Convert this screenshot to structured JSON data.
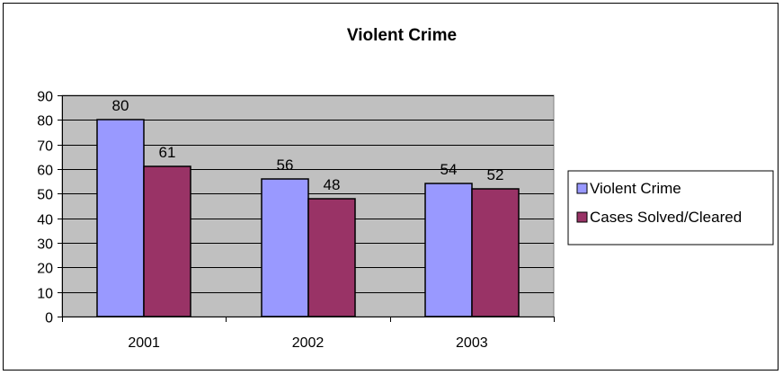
{
  "chart_data": {
    "type": "bar",
    "title": "Violent Crime",
    "categories": [
      "2001",
      "2002",
      "2003"
    ],
    "series": [
      {
        "name": "Violent Crime",
        "values": [
          80,
          56,
          54
        ],
        "color": "#9999ff"
      },
      {
        "name": "Cases Solved/Cleared",
        "values": [
          61,
          48,
          52
        ],
        "color": "#993366"
      }
    ],
    "ylim": [
      0,
      90
    ],
    "yticks": [
      0,
      10,
      20,
      30,
      40,
      50,
      60,
      70,
      80,
      90
    ],
    "grid": true,
    "plot_background": "#c0c0c0",
    "legend_position": "right",
    "show_data_labels": true
  }
}
